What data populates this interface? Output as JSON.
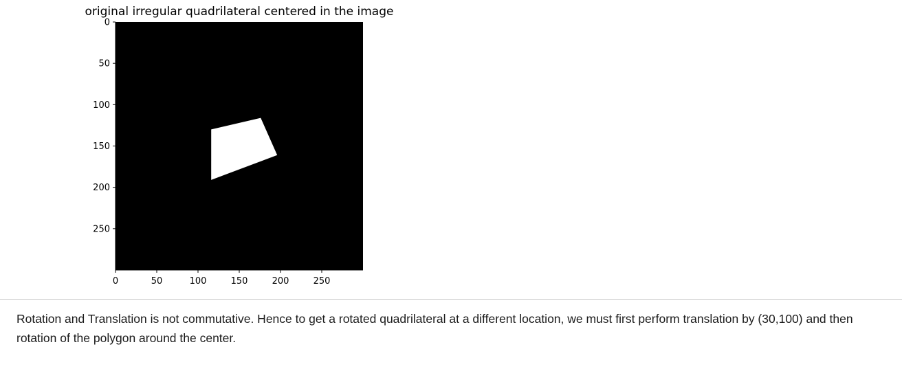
{
  "output": {
    "title": "original irregular quadrilateral centered in the image"
  },
  "chart_data": {
    "type": "image",
    "title": "original irregular quadrilateral centered in the image",
    "xlim": [
      0,
      300
    ],
    "ylim": [
      300,
      0
    ],
    "xticks": [
      0,
      50,
      100,
      150,
      200,
      250
    ],
    "yticks": [
      0,
      50,
      100,
      150,
      200,
      250
    ],
    "background_color": "#000000",
    "shape_color": "#ffffff",
    "quadrilateral": [
      [
        116,
        130
      ],
      [
        176,
        116
      ],
      [
        196,
        161
      ],
      [
        116,
        191
      ]
    ]
  },
  "markdown": {
    "text": "Rotation and Translation is not commutative. Hence to get a rotated quadrilateral at a different location, we must first perform translation by (30,100) and then rotation of the polygon around the center."
  }
}
